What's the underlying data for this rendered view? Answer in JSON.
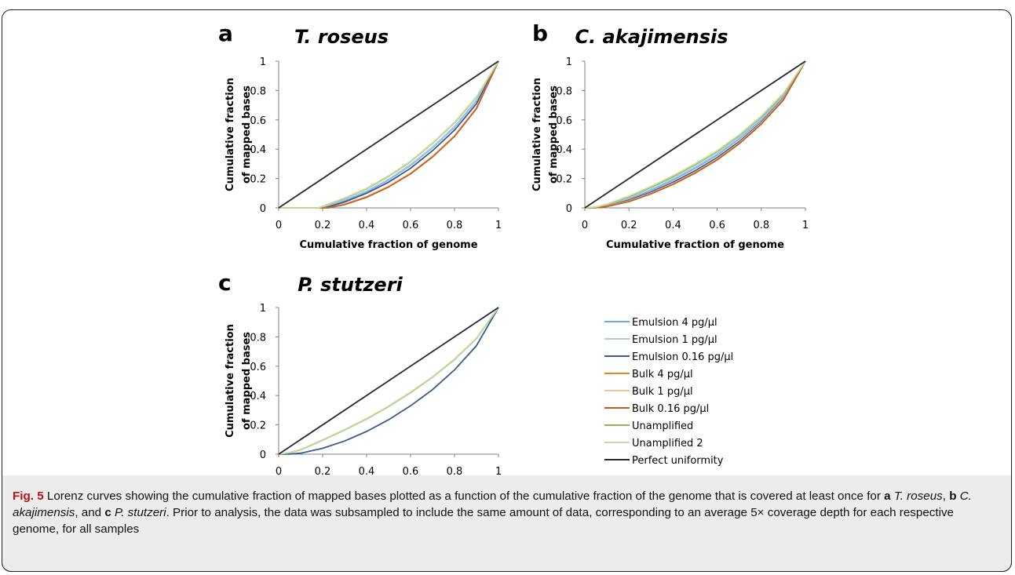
{
  "panel_letters": [
    "a",
    "b",
    "c"
  ],
  "chart_data": [
    {
      "type": "line",
      "panel": "a",
      "title": "T. roseus",
      "xlabel": "Cumulative fraction of genome",
      "ylabel_lines": [
        "Cumulative fraction",
        "of mapped bases"
      ],
      "xlim": [
        0,
        1
      ],
      "ylim": [
        0,
        1
      ],
      "xticks": [
        "0",
        "0.2",
        "0.4",
        "0.6",
        "0.8",
        "1"
      ],
      "yticks": [
        "0",
        "0.2",
        "0.4",
        "0.6",
        "0.8",
        "1"
      ],
      "grid": false,
      "series": [
        {
          "name": "Emulsion 4 pg/µl",
          "color": "#6fa8dc",
          "x": [
            0,
            0.195,
            0.2,
            0.3,
            0.4,
            0.5,
            0.6,
            0.7,
            0.8,
            0.9,
            1
          ],
          "y": [
            0,
            0,
            0.005,
            0.05,
            0.11,
            0.19,
            0.29,
            0.41,
            0.55,
            0.73,
            1
          ]
        },
        {
          "name": "Emulsion 1 pg/µl",
          "color": "#a9c8e8",
          "x": [
            0,
            0.195,
            0.2,
            0.3,
            0.4,
            0.5,
            0.6,
            0.7,
            0.8,
            0.9,
            1
          ],
          "y": [
            0,
            0,
            0.005,
            0.055,
            0.115,
            0.195,
            0.295,
            0.415,
            0.555,
            0.735,
            1
          ]
        },
        {
          "name": "Emulsion 0.16 pg/µl",
          "color": "#3a5a88",
          "x": [
            0,
            0.205,
            0.22,
            0.3,
            0.4,
            0.5,
            0.6,
            0.7,
            0.8,
            0.9,
            1
          ],
          "y": [
            0,
            0,
            0.005,
            0.04,
            0.1,
            0.175,
            0.27,
            0.39,
            0.53,
            0.71,
            1
          ]
        },
        {
          "name": "Bulk 4 pg/µl",
          "color": "#e8822a",
          "x": [
            0,
            0.225,
            0.24,
            0.3,
            0.4,
            0.5,
            0.6,
            0.7,
            0.8,
            0.9,
            1
          ],
          "y": [
            0,
            0,
            0.005,
            0.025,
            0.075,
            0.145,
            0.235,
            0.35,
            0.49,
            0.68,
            1
          ]
        },
        {
          "name": "Bulk 1 pg/µl",
          "color": "#f5c597",
          "x": [
            0,
            0.225,
            0.24,
            0.3,
            0.4,
            0.5,
            0.6,
            0.7,
            0.8,
            0.9,
            1
          ],
          "y": [
            0,
            0,
            0.005,
            0.028,
            0.078,
            0.148,
            0.238,
            0.353,
            0.493,
            0.683,
            1
          ]
        },
        {
          "name": "Bulk 0.16 pg/µl",
          "color": "#c0601e",
          "x": [
            0,
            0.225,
            0.24,
            0.3,
            0.4,
            0.5,
            0.6,
            0.7,
            0.8,
            0.9,
            1
          ],
          "y": [
            0,
            0,
            0.005,
            0.022,
            0.072,
            0.142,
            0.232,
            0.347,
            0.487,
            0.677,
            1
          ]
        },
        {
          "name": "Unamplified",
          "color": "#8fb25a",
          "x": [
            0,
            0.18,
            0.19,
            0.3,
            0.4,
            0.5,
            0.6,
            0.7,
            0.8,
            0.9,
            1
          ],
          "y": [
            0,
            0,
            0.005,
            0.065,
            0.13,
            0.215,
            0.315,
            0.44,
            0.58,
            0.755,
            1
          ]
        },
        {
          "name": "Unamplified 2",
          "color": "#c6dba0",
          "x": [
            0,
            0.18,
            0.19,
            0.3,
            0.4,
            0.5,
            0.6,
            0.7,
            0.8,
            0.9,
            1
          ],
          "y": [
            0,
            0,
            0.005,
            0.068,
            0.133,
            0.218,
            0.318,
            0.443,
            0.583,
            0.758,
            1
          ]
        },
        {
          "name": "Perfect uniformity",
          "color": "#1f2a33",
          "x": [
            0,
            1
          ],
          "y": [
            0,
            1
          ]
        }
      ]
    },
    {
      "type": "line",
      "panel": "b",
      "title": "C. akajimensis",
      "xlabel": "Cumulative fraction of genome",
      "ylabel_lines": [
        "Cumulative fraction",
        "of mapped bases"
      ],
      "xlim": [
        0,
        1
      ],
      "ylim": [
        0,
        1
      ],
      "xticks": [
        "0",
        "0.2",
        "0.4",
        "0.6",
        "0.8",
        "1"
      ],
      "yticks": [
        "0",
        "0.2",
        "0.4",
        "0.6",
        "0.8",
        "1"
      ],
      "grid": false,
      "series": [
        {
          "name": "Emulsion 4 pg/µl",
          "color": "#6fa8dc",
          "x": [
            0,
            0.05,
            0.1,
            0.2,
            0.3,
            0.4,
            0.5,
            0.6,
            0.7,
            0.8,
            0.9,
            1
          ],
          "y": [
            0,
            0.003,
            0.015,
            0.06,
            0.12,
            0.19,
            0.27,
            0.36,
            0.47,
            0.6,
            0.76,
            1
          ]
        },
        {
          "name": "Emulsion 1 pg/µl",
          "color": "#a9c8e8",
          "x": [
            0,
            0.05,
            0.1,
            0.2,
            0.3,
            0.4,
            0.5,
            0.6,
            0.7,
            0.8,
            0.9,
            1
          ],
          "y": [
            0,
            0.004,
            0.018,
            0.065,
            0.127,
            0.198,
            0.278,
            0.368,
            0.478,
            0.607,
            0.765,
            1
          ]
        },
        {
          "name": "Emulsion 0.16 pg/µl",
          "color": "#3a5a88",
          "x": [
            0,
            0.05,
            0.1,
            0.2,
            0.3,
            0.4,
            0.5,
            0.6,
            0.7,
            0.8,
            0.9,
            1
          ],
          "y": [
            0,
            0.002,
            0.012,
            0.052,
            0.108,
            0.175,
            0.253,
            0.343,
            0.452,
            0.584,
            0.745,
            1
          ]
        },
        {
          "name": "Bulk 4 pg/µl",
          "color": "#e8822a",
          "x": [
            0,
            0.05,
            0.1,
            0.2,
            0.3,
            0.4,
            0.5,
            0.6,
            0.7,
            0.8,
            0.9,
            1
          ],
          "y": [
            0,
            0.002,
            0.01,
            0.045,
            0.098,
            0.163,
            0.24,
            0.33,
            0.44,
            0.574,
            0.738,
            1
          ]
        },
        {
          "name": "Bulk 1 pg/µl",
          "color": "#f5c597",
          "x": [
            0,
            0.05,
            0.1,
            0.2,
            0.3,
            0.4,
            0.5,
            0.6,
            0.7,
            0.8,
            0.9,
            1
          ],
          "y": [
            0,
            0.002,
            0.011,
            0.047,
            0.1,
            0.166,
            0.243,
            0.333,
            0.443,
            0.577,
            0.741,
            1
          ]
        },
        {
          "name": "Bulk 0.16 pg/µl",
          "color": "#c0601e",
          "x": [
            0,
            0.05,
            0.1,
            0.2,
            0.3,
            0.4,
            0.5,
            0.6,
            0.7,
            0.8,
            0.9,
            1
          ],
          "y": [
            0,
            0.001,
            0.009,
            0.043,
            0.095,
            0.16,
            0.237,
            0.327,
            0.437,
            0.571,
            0.735,
            1
          ]
        },
        {
          "name": "Unamplified",
          "color": "#8fb25a",
          "x": [
            0,
            0.05,
            0.1,
            0.2,
            0.3,
            0.4,
            0.5,
            0.6,
            0.7,
            0.8,
            0.9,
            1
          ],
          "y": [
            0,
            0.005,
            0.022,
            0.075,
            0.14,
            0.212,
            0.293,
            0.383,
            0.492,
            0.62,
            0.775,
            1
          ]
        },
        {
          "name": "Unamplified 2",
          "color": "#c6dba0",
          "x": [
            0,
            0.05,
            0.1,
            0.2,
            0.3,
            0.4,
            0.5,
            0.6,
            0.7,
            0.8,
            0.9,
            1
          ],
          "y": [
            0,
            0.006,
            0.025,
            0.08,
            0.146,
            0.219,
            0.3,
            0.39,
            0.498,
            0.626,
            0.78,
            1
          ]
        },
        {
          "name": "Perfect uniformity",
          "color": "#1f2a33",
          "x": [
            0,
            1
          ],
          "y": [
            0,
            1
          ]
        }
      ]
    },
    {
      "type": "line",
      "panel": "c",
      "title": "P. stutzeri",
      "xlabel": "Cumulative fraction of genome",
      "ylabel_lines": [
        "Cumulative fraction",
        "of mapped bases"
      ],
      "xlim": [
        0,
        1
      ],
      "ylim": [
        0,
        1
      ],
      "xticks": [
        "0",
        "0.2",
        "0.4",
        "0.6",
        "0.8",
        "1"
      ],
      "yticks": [
        "0",
        "0.2",
        "0.4",
        "0.6",
        "0.8",
        "1"
      ],
      "grid": false,
      "series": [
        {
          "name": "Emulsion 0.16 pg/µl",
          "color": "#3a5a88",
          "x": [
            0,
            0.05,
            0.1,
            0.2,
            0.3,
            0.4,
            0.5,
            0.6,
            0.7,
            0.8,
            0.9,
            1
          ],
          "y": [
            0,
            0.001,
            0.007,
            0.04,
            0.09,
            0.155,
            0.235,
            0.33,
            0.44,
            0.575,
            0.74,
            1
          ]
        },
        {
          "name": "Unamplified",
          "color": "#8fb25a",
          "x": [
            0,
            0.05,
            0.1,
            0.2,
            0.3,
            0.4,
            0.5,
            0.6,
            0.7,
            0.8,
            0.9,
            1
          ],
          "y": [
            0,
            0.01,
            0.03,
            0.095,
            0.165,
            0.24,
            0.325,
            0.42,
            0.525,
            0.645,
            0.79,
            1
          ]
        },
        {
          "name": "Unamplified 2",
          "color": "#c6dba0",
          "x": [
            0,
            0.05,
            0.1,
            0.2,
            0.3,
            0.4,
            0.5,
            0.6,
            0.7,
            0.8,
            0.9,
            1
          ],
          "y": [
            0,
            0.011,
            0.032,
            0.098,
            0.168,
            0.243,
            0.328,
            0.423,
            0.528,
            0.648,
            0.792,
            1
          ]
        },
        {
          "name": "Perfect uniformity",
          "color": "#1f2a33",
          "x": [
            0,
            1
          ],
          "y": [
            0,
            1
          ]
        }
      ]
    }
  ],
  "legend": {
    "entries": [
      {
        "label": "Emulsion 4 pg/µl",
        "color": "#6fa8dc"
      },
      {
        "label": "Emulsion 1 pg/µl",
        "color": "#a9c8e8"
      },
      {
        "label": "Emulsion 0.16 pg/µl",
        "color": "#3a5a88"
      },
      {
        "label": "Bulk 4 pg/µl",
        "color": "#e8822a"
      },
      {
        "label": "Bulk 1 pg/µl",
        "color": "#f5c597"
      },
      {
        "label": "Bulk 0.16 pg/µl",
        "color": "#c0601e"
      },
      {
        "label": "Unamplified",
        "color": "#8fb25a"
      },
      {
        "label": "Unamplified 2",
        "color": "#c6dba0"
      },
      {
        "label": "Perfect uniformity",
        "color": "#1f2a33"
      }
    ]
  },
  "caption": {
    "fig_label": "Fig. 5",
    "text_1": " Lorenz curves showing the cumulative fraction of mapped bases plotted as a function of the cumulative fraction of the genome that is covered at least once for ",
    "a_letter": "a",
    "a_name": "T. roseus",
    "sep_1": ", ",
    "b_letter": "b",
    "b_name": "C. akajimensis",
    "sep_2": ", and ",
    "c_letter": "c",
    "c_name": "P. stutzeri",
    "text_2": ". Prior to analysis, the data was subsampled to include the same amount of data, corresponding to an average 5× coverage depth for each respective genome, for all samples"
  },
  "colors": {
    "frame": "#222222",
    "caption_bg": "#ececec",
    "fig_label": "#b5121b"
  }
}
